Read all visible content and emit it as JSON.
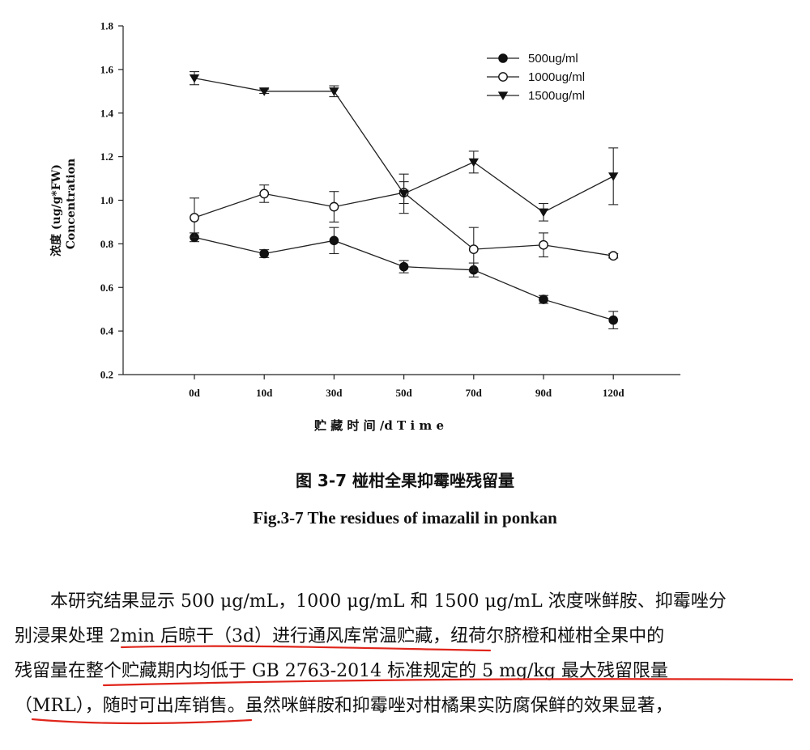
{
  "chart_data": {
    "type": "line",
    "categories": [
      "0d",
      "10d",
      "30d",
      "50d",
      "70d",
      "90d",
      "120d"
    ],
    "ylabel_cn": "浓度 (ug/g*FW)",
    "ylabel_en": "Concentration",
    "xlabel": "贮 藏 时 间 /d  T i m e",
    "ylim": [
      0.2,
      1.8
    ],
    "yticks": [
      "0.2",
      "0.4",
      "0.6",
      "0.8",
      "1.0",
      "1.2",
      "1.4",
      "1.6",
      "1.8"
    ],
    "legend_position": "top-right",
    "series": [
      {
        "name": "500ug/ml",
        "marker": "filled-circle",
        "values": [
          0.83,
          0.755,
          0.815,
          0.695,
          0.68,
          0.545,
          0.45
        ],
        "errors": [
          0.02,
          0.018,
          0.06,
          0.028,
          0.032,
          0.018,
          0.04
        ]
      },
      {
        "name": "1000ug/ml",
        "marker": "open-circle",
        "values": [
          0.92,
          1.03,
          0.97,
          1.035,
          0.775,
          0.795,
          0.745
        ],
        "errors": [
          0.09,
          0.04,
          0.07,
          0.05,
          0.1,
          0.055,
          0.01
        ]
      },
      {
        "name": "1500ug/ml",
        "marker": "filled-triangle-down",
        "values": [
          1.56,
          1.5,
          1.5,
          1.03,
          1.175,
          0.945,
          1.11
        ],
        "errors": [
          0.03,
          0.01,
          0.025,
          0.09,
          0.05,
          0.04,
          0.13
        ]
      }
    ]
  },
  "caption": {
    "cn": "图 3-7  椪柑全果抑霉唑残留量",
    "en": "Fig.3-7 The residues of imazalil in ponkan"
  },
  "paragraph": {
    "lines": [
      "　　本研究结果显示 500 μg/mL，1000 μg/mL 和 1500 μg/mL 浓度咪鲜胺、抑霉唑分",
      "别浸果处理 2min 后晾干（3d）进行通风库常温贮藏，纽荷尔脐橙和椪柑全果中的",
      "残留量在整个贮藏期内均低于 GB 2763-2014 标准规定的 5 mg/kg 最大残留限量",
      "（MRL），随时可出库销售。虽然咪鲜胺和抑霉唑对柑橘果实防腐保鲜的效果显著，"
    ]
  },
  "annotation_color": "#e0251b"
}
